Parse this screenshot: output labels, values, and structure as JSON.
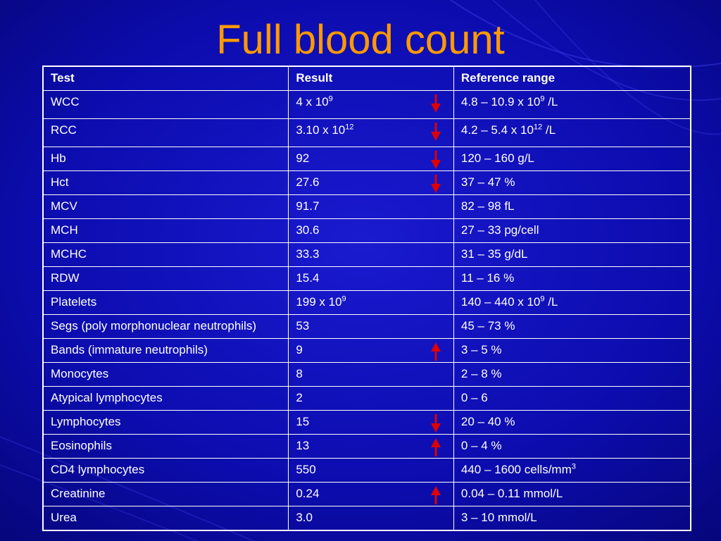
{
  "slide": {
    "title": "Full blood count",
    "background_color": "#0a0a9a",
    "title_color": "#ff9900",
    "arrow_color": "#e00000"
  },
  "table": {
    "headers": {
      "test": "Test",
      "result": "Result",
      "reference": "Reference range"
    },
    "rows": [
      {
        "test": "WCC",
        "result": "4 x 10",
        "result_sup": "9",
        "ref": "4.8 – 10.9 x 10",
        "ref_sup": "9",
        "ref_tail": " /L",
        "flag": "down"
      },
      {
        "test": "RCC",
        "result": "3.10 x 10",
        "result_sup": "12",
        "ref": "4.2 – 5.4 x 10",
        "ref_sup": "12",
        "ref_tail": " /L",
        "flag": "down"
      },
      {
        "test": "Hb",
        "result": "92",
        "ref": "120 – 160 g/L",
        "flag": "down"
      },
      {
        "test": "Hct",
        "result": "27.6",
        "ref": "37 – 47 %",
        "flag": "down"
      },
      {
        "test": "MCV",
        "result": "91.7",
        "ref": "82 – 98 fL",
        "flag": ""
      },
      {
        "test": "MCH",
        "result": "30.6",
        "ref": "27 – 33 pg/cell",
        "flag": ""
      },
      {
        "test": "MCHC",
        "result": "33.3",
        "ref": "31 – 35 g/dL",
        "flag": ""
      },
      {
        "test": "RDW",
        "result": "15.4",
        "ref": "11 – 16 %",
        "flag": ""
      },
      {
        "test": "Platelets",
        "result": "199 x 10",
        "result_sup": "9",
        "ref": "140 – 440 x 10",
        "ref_sup": "9",
        "ref_tail": " /L",
        "flag": ""
      },
      {
        "test": "Segs (poly morphonuclear neutrophils)",
        "result": "53",
        "ref": "45 – 73 %",
        "flag": ""
      },
      {
        "test": "Bands (immature neutrophils)",
        "result": "9",
        "ref": "3 – 5 %",
        "flag": "up"
      },
      {
        "test": "Monocytes",
        "result": "8",
        "ref": "2 – 8 %",
        "flag": ""
      },
      {
        "test": "Atypical lymphocytes",
        "result": "2",
        "ref": "0 – 6",
        "flag": ""
      },
      {
        "test": "Lymphocytes",
        "result": "15",
        "ref": "20 – 40 %",
        "flag": "down"
      },
      {
        "test": "Eosinophils",
        "result": "13",
        "ref": "0 – 4 %",
        "flag": "up"
      },
      {
        "test": "CD4 lymphocytes",
        "result": "550",
        "ref": "440 – 1600 cells/mm",
        "ref_sup": "3",
        "flag": ""
      },
      {
        "test": "Creatinine",
        "result": "0.24",
        "ref": "0.04 – 0.11 mmol/L",
        "flag": "up"
      },
      {
        "test": "Urea",
        "result": "3.0",
        "ref": "3 – 10 mmol/L",
        "flag": ""
      }
    ]
  }
}
